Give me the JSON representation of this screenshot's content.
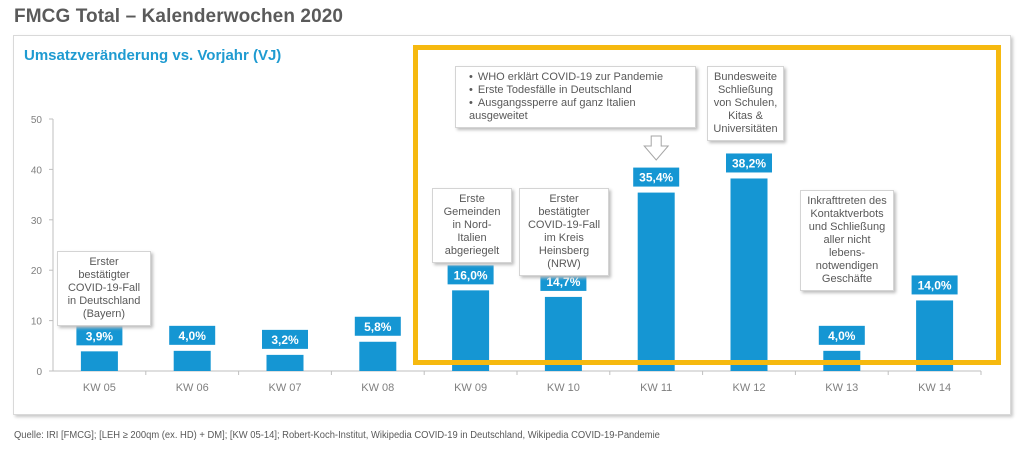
{
  "page_title": "FMCG Total – Kalenderwochen 2020",
  "source": "Quelle: IRI [FMCG]; [LEH ≥ 200qm (ex. HD) + DM]; [KW 05-14]; Robert-Koch-Institut, Wikipedia COVID-19 in Deutschland, Wikipedia COVID-19-Pandemie",
  "colors": {
    "bar": "#1596d3",
    "title": "#5a5a5a",
    "subtitle": "#1f9bd1",
    "highlight": "#f6b90f"
  },
  "annotations": {
    "kw05": "Erster bestätigter COVID-19-Fall in Deutschland (Bayern)",
    "kw09": "Erste Gemeinden in Nord-Italien abgeriegelt",
    "kw10": "Erster bestätigter COVID-19-Fall im Kreis Heinsberg (NRW)",
    "kw11": [
      "WHO erklärt COVID-19 zur Pandemie",
      "Erste Todesfälle in Deutschland",
      "Ausgangssperre auf ganz Italien ausgeweitet"
    ],
    "kw12": "Bundesweite Schließung von Schulen, Kitas & Universitäten",
    "kw13": "Inkrafttreten des Kontaktverbots und Schließung aller nicht lebens-notwendigen Geschäfte"
  },
  "chart_data": {
    "type": "bar",
    "title": "Umsatzveränderung vs. Vorjahr (VJ)",
    "xlabel": "",
    "ylabel": "",
    "categories": [
      "KW 05",
      "KW 06",
      "KW 07",
      "KW 08",
      "KW 09",
      "KW 10",
      "KW 11",
      "KW 12",
      "KW 13",
      "KW 14"
    ],
    "values": [
      3.9,
      4.0,
      3.2,
      5.8,
      16.0,
      14.7,
      35.4,
      38.2,
      4.0,
      14.0
    ],
    "value_labels": [
      "3,9%",
      "4,0%",
      "3,2%",
      "5,8%",
      "16,0%",
      "14,7%",
      "35,4%",
      "38,2%",
      "4,0%",
      "14,0%"
    ],
    "ylim": [
      0,
      50
    ],
    "yticks": [
      0,
      10,
      20,
      30,
      40,
      50
    ],
    "grid": false,
    "legend": "none",
    "highlight_range": [
      "KW 09",
      "KW 14"
    ]
  }
}
